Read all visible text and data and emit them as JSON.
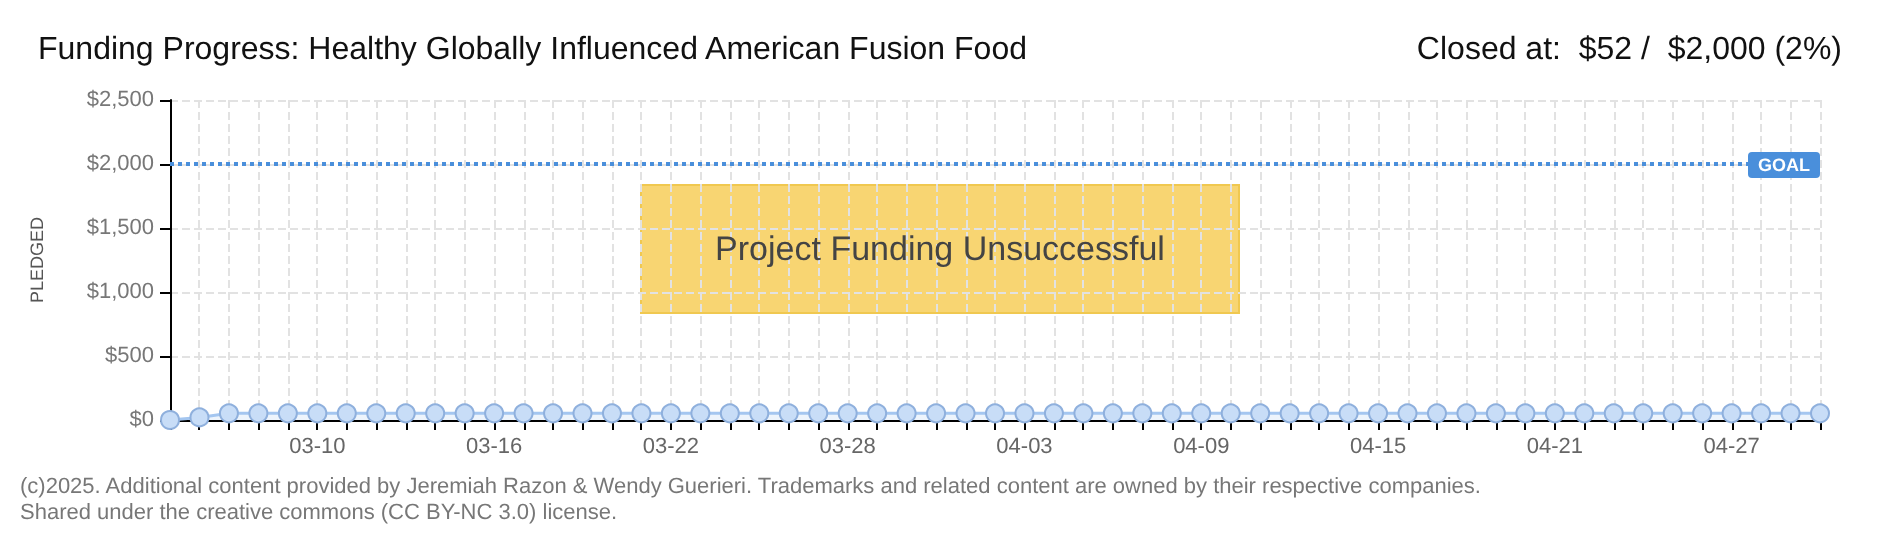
{
  "chart_data": {
    "type": "area",
    "title": "Funding Progress: Healthy Globally Influenced American Fusion Food",
    "subtitle": "Closed at:  $52 /  $2,000 (2%)",
    "ylabel": "PLEDGED",
    "x": [
      "--03-05",
      "--03-06",
      "--03-07",
      "--03-08",
      "--03-09",
      "--03-10",
      "--03-11",
      "--03-12",
      "--03-13",
      "--03-14",
      "--03-15",
      "--03-16",
      "--03-17",
      "--03-18",
      "--03-19",
      "--03-20",
      "--03-21",
      "--03-22",
      "--03-23",
      "--03-24",
      "--03-25",
      "--03-26",
      "--03-27",
      "--03-28",
      "--03-29",
      "--03-30",
      "--03-31",
      "--04-01",
      "--04-02",
      "--04-03",
      "--04-04",
      "--04-05",
      "--04-06",
      "--04-07",
      "--04-08",
      "--04-09",
      "--04-10",
      "--04-11",
      "--04-12",
      "--04-13",
      "--04-14",
      "--04-15",
      "--04-16",
      "--04-17",
      "--04-18",
      "--04-19",
      "--04-20",
      "--04-21",
      "--04-22",
      "--04-23",
      "--04-24",
      "--04-25",
      "--04-26",
      "--04-27",
      "--04-28",
      "--04-29",
      "--04-30"
    ],
    "series": [
      {
        "color": "#a4c6f0",
        "values": [
          0,
          20,
          52,
          52,
          52,
          52,
          52,
          52,
          52,
          52,
          52,
          52,
          52,
          52,
          52,
          52,
          52,
          52,
          52,
          52,
          52,
          52,
          52,
          52,
          52,
          52,
          52,
          52,
          52,
          52,
          52,
          52,
          52,
          52,
          52,
          52,
          52,
          52,
          52,
          52,
          52,
          52,
          52,
          52,
          52,
          52,
          52,
          52,
          52,
          52,
          52,
          52,
          52,
          52,
          52,
          52,
          52
        ]
      }
    ],
    "xlim": [
      "--03-05",
      "--04-30"
    ],
    "xticks": [
      {
        "value": "--03-05",
        "label": null
      },
      {
        "value": "--03-06",
        "label": null
      },
      {
        "value": "--03-07",
        "label": null
      },
      {
        "value": "--03-08",
        "label": null
      },
      {
        "value": "--03-09",
        "label": null
      },
      {
        "value": "--03-10",
        "label": "03-10"
      },
      {
        "value": "--03-11",
        "label": null
      },
      {
        "value": "--03-12",
        "label": null
      },
      {
        "value": "--03-13",
        "label": null
      },
      {
        "value": "--03-14",
        "label": null
      },
      {
        "value": "--03-15",
        "label": null
      },
      {
        "value": "--03-16",
        "label": "03-16"
      },
      {
        "value": "--03-17",
        "label": null
      },
      {
        "value": "--03-18",
        "label": null
      },
      {
        "value": "--03-19",
        "label": null
      },
      {
        "value": "--03-20",
        "label": null
      },
      {
        "value": "--03-21",
        "label": null
      },
      {
        "value": "--03-22",
        "label": "03-22"
      },
      {
        "value": "--03-23",
        "label": null
      },
      {
        "value": "--03-24",
        "label": null
      },
      {
        "value": "--03-25",
        "label": null
      },
      {
        "value": "--03-26",
        "label": null
      },
      {
        "value": "--03-27",
        "label": null
      },
      {
        "value": "--03-28",
        "label": "03-28"
      },
      {
        "value": "--03-29",
        "label": null
      },
      {
        "value": "--03-30",
        "label": null
      },
      {
        "value": "--03-31",
        "label": null
      },
      {
        "value": "--04-01",
        "label": null
      },
      {
        "value": "--04-02",
        "label": null
      },
      {
        "value": "--04-03",
        "label": "04-03"
      },
      {
        "value": "--04-04",
        "label": null
      },
      {
        "value": "--04-05",
        "label": null
      },
      {
        "value": "--04-06",
        "label": null
      },
      {
        "value": "--04-07",
        "label": null
      },
      {
        "value": "--04-08",
        "label": null
      },
      {
        "value": "--04-09",
        "label": "04-09"
      },
      {
        "value": "--04-10",
        "label": null
      },
      {
        "value": "--04-11",
        "label": null
      },
      {
        "value": "--04-12",
        "label": null
      },
      {
        "value": "--04-13",
        "label": null
      },
      {
        "value": "--04-14",
        "label": null
      },
      {
        "value": "--04-15",
        "label": "04-15"
      },
      {
        "value": "--04-16",
        "label": null
      },
      {
        "value": "--04-17",
        "label": null
      },
      {
        "value": "--04-18",
        "label": null
      },
      {
        "value": "--04-19",
        "label": null
      },
      {
        "value": "--04-20",
        "label": null
      },
      {
        "value": "--04-21",
        "label": "04-21"
      },
      {
        "value": "--04-22",
        "label": null
      },
      {
        "value": "--04-23",
        "label": null
      },
      {
        "value": "--04-24",
        "label": null
      },
      {
        "value": "--04-25",
        "label": null
      },
      {
        "value": "--04-26",
        "label": null
      },
      {
        "value": "--04-27",
        "label": "04-27"
      },
      {
        "value": "--04-28",
        "label": null
      },
      {
        "value": "--04-29",
        "label": null
      },
      {
        "value": "--04-30",
        "label": null
      }
    ],
    "ylim": [
      0,
      2500
    ],
    "yticks": [
      {
        "value": 0,
        "label": "$0"
      },
      {
        "value": 500,
        "label": "$500"
      },
      {
        "value": 1000,
        "label": "$1,000"
      },
      {
        "value": 1500,
        "label": "$1,500"
      },
      {
        "value": 2000,
        "label": "$2,000"
      },
      {
        "value": 2500,
        "label": "$2,500"
      }
    ],
    "ref_lines": [
      {
        "axis": "y",
        "value": 2000,
        "label": "GOAL",
        "color": "#4a8fdb",
        "line_style": "dotted"
      }
    ],
    "annotations": [
      "Project Funding Unsuccessful",
      "(c)2025. Additional content provided by Jeremiah Razon & Wendy Guerieri. Trademarks and related content are owned by their respective companies.",
      "Shared under the creative commons (CC BY-NC 3.0) license."
    ],
    "grid": true,
    "marker": "circle",
    "line_style": "solid"
  }
}
